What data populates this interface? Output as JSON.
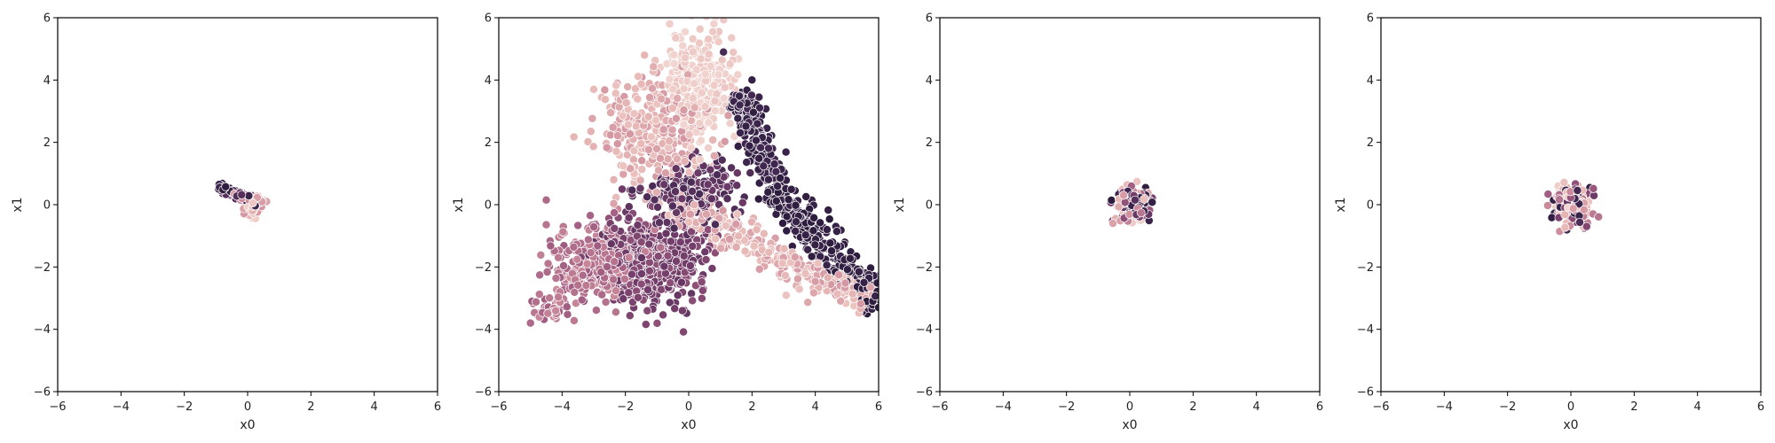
{
  "figure": {
    "background": "#ffffff"
  },
  "palette": [
    "#f2d6d1",
    "#e7b8b6",
    "#cf8f9e",
    "#9d5a7f",
    "#6d3a67",
    "#3f2750",
    "#2b1b3b"
  ],
  "chart_data": [
    {
      "type": "scatter",
      "title": "",
      "xlabel": "x0",
      "ylabel": "x1",
      "xlim": [
        -6,
        6
      ],
      "ylim": [
        -6,
        6
      ],
      "xticks": [
        -6,
        -4,
        -2,
        0,
        2,
        4,
        6
      ],
      "yticks": [
        -6,
        -4,
        -2,
        0,
        2,
        4,
        6
      ],
      "grid": false,
      "hue_scale": "continuous",
      "clusters": [
        {
          "shape": "segment",
          "from": [
            -0.9,
            0.6
          ],
          "to": [
            0.3,
            0.05
          ],
          "width": 0.13,
          "count": 60,
          "hue": [
            0.6,
            1.0
          ]
        },
        {
          "shape": "segment",
          "from": [
            -0.5,
            0.35
          ],
          "to": [
            0.5,
            0.1
          ],
          "width": 0.12,
          "count": 40,
          "hue": [
            0.2,
            0.8
          ]
        },
        {
          "shape": "ellipse",
          "cx": 0.15,
          "cy": -0.2,
          "rx": 0.18,
          "ry": 0.18,
          "count": 25,
          "hue": [
            0.0,
            0.3
          ]
        },
        {
          "shape": "ellipse",
          "cx": 0.4,
          "cy": 0.1,
          "rx": 0.15,
          "ry": 0.12,
          "count": 20,
          "hue": [
            0.1,
            0.4
          ]
        }
      ],
      "highlights": [
        {
          "x": -0.9,
          "y": 0.65,
          "hue": 0.85
        },
        {
          "x": 0.3,
          "y": 0.18,
          "hue": 0.95
        },
        {
          "x": -0.1,
          "y": -0.1,
          "hue": 0.95
        },
        {
          "x": 0.25,
          "y": -0.45,
          "hue": 0.05
        },
        {
          "x": 0.6,
          "y": 0.1,
          "hue": 0.25
        }
      ]
    },
    {
      "type": "scatter",
      "title": "",
      "xlabel": "x0",
      "ylabel": "x1",
      "xlim": [
        -6,
        6
      ],
      "ylim": [
        -6,
        6
      ],
      "xticks": [
        -6,
        -4,
        -2,
        0,
        2,
        4,
        6
      ],
      "yticks": [
        -6,
        -4,
        -2,
        0,
        2,
        4,
        6
      ],
      "grid": false,
      "hue_scale": "continuous",
      "clusters": [
        {
          "shape": "ellipse",
          "cx": 0.3,
          "cy": 4.0,
          "rx": 0.8,
          "ry": 1.5,
          "count": 260,
          "hue": [
            0.0,
            0.1
          ]
        },
        {
          "shape": "ellipse",
          "cx": -1.2,
          "cy": 2.4,
          "rx": 1.4,
          "ry": 1.6,
          "count": 330,
          "hue": [
            0.1,
            0.3
          ]
        },
        {
          "shape": "segment",
          "from": [
            -0.5,
            0.0
          ],
          "to": [
            5.8,
            -3.1
          ],
          "width": 0.5,
          "count": 300,
          "hue": [
            0.1,
            0.3
          ]
        },
        {
          "shape": "ellipse",
          "cx": -2.8,
          "cy": -1.8,
          "rx": 1.3,
          "ry": 1.0,
          "count": 330,
          "hue": [
            0.35,
            0.5
          ]
        },
        {
          "shape": "segment",
          "from": [
            -4.7,
            -3.7
          ],
          "to": [
            -2.6,
            -1.5
          ],
          "width": 0.45,
          "count": 110,
          "hue": [
            0.35,
            0.5
          ]
        },
        {
          "shape": "ellipse",
          "cx": -1.1,
          "cy": -1.8,
          "rx": 1.4,
          "ry": 1.1,
          "count": 460,
          "hue": [
            0.55,
            0.7
          ]
        },
        {
          "shape": "ellipse",
          "cx": 0.0,
          "cy": 0.4,
          "rx": 1.3,
          "ry": 1.0,
          "count": 220,
          "hue": [
            0.65,
            0.8
          ]
        },
        {
          "shape": "segment",
          "from": [
            1.6,
            3.6
          ],
          "to": [
            2.6,
            0.8
          ],
          "width": 0.45,
          "count": 160,
          "hue": [
            0.8,
            0.95
          ]
        },
        {
          "shape": "segment",
          "from": [
            2.6,
            0.6
          ],
          "to": [
            6.0,
            -3.2
          ],
          "width": 0.45,
          "count": 330,
          "hue": [
            0.88,
            1.0
          ]
        }
      ],
      "highlights": [
        {
          "x": -4.5,
          "y": 0.15,
          "hue": 0.45
        },
        {
          "x": -5.0,
          "y": -3.8,
          "hue": 0.45
        },
        {
          "x": -3.0,
          "y": 3.7,
          "hue": 0.15
        },
        {
          "x": -0.6,
          "y": 5.8,
          "hue": 0.05
        },
        {
          "x": 0.8,
          "y": 5.8,
          "hue": 0.02
        },
        {
          "x": 1.1,
          "y": 4.9,
          "hue": 0.8
        },
        {
          "x": 2.0,
          "y": 4.0,
          "hue": 0.92
        },
        {
          "x": -0.2,
          "y": -3.4,
          "hue": 0.65
        },
        {
          "x": 3.4,
          "y": -2.6,
          "hue": 0.2
        },
        {
          "x": 4.5,
          "y": -2.3,
          "hue": 0.15
        },
        {
          "x": 6.0,
          "y": -3.3,
          "hue": 0.98
        }
      ]
    },
    {
      "type": "scatter",
      "title": "",
      "xlabel": "x0",
      "ylabel": "x1",
      "xlim": [
        -6,
        6
      ],
      "ylim": [
        -6,
        6
      ],
      "xticks": [
        -6,
        -4,
        -2,
        0,
        2,
        4,
        6
      ],
      "yticks": [
        -6,
        -4,
        -2,
        0,
        2,
        4,
        6
      ],
      "grid": false,
      "hue_scale": "continuous",
      "clusters": [
        {
          "shape": "ellipse",
          "cx": 0.1,
          "cy": 0.0,
          "rx": 0.42,
          "ry": 0.48,
          "count": 160,
          "hue": [
            0.0,
            1.0
          ]
        },
        {
          "shape": "ellipse",
          "cx": 0.25,
          "cy": 0.15,
          "rx": 0.2,
          "ry": 0.25,
          "count": 40,
          "hue": [
            0.7,
            1.0
          ]
        }
      ],
      "highlights": [
        {
          "x": 0.5,
          "y": 0.55,
          "hue": 0.95
        },
        {
          "x": -0.3,
          "y": 0.4,
          "hue": 0.9
        },
        {
          "x": 0.35,
          "y": -0.5,
          "hue": 0.05
        },
        {
          "x": -0.45,
          "y": -0.45,
          "hue": 0.2
        }
      ]
    },
    {
      "type": "scatter",
      "title": "",
      "xlabel": "x0",
      "ylabel": "x1",
      "xlim": [
        -6,
        6
      ],
      "ylim": [
        -6,
        6
      ],
      "xticks": [
        -6,
        -4,
        -2,
        0,
        2,
        4,
        6
      ],
      "yticks": [
        -6,
        -4,
        -2,
        0,
        2,
        4,
        6
      ],
      "grid": false,
      "hue_scale": "continuous",
      "clusters": [
        {
          "shape": "ellipse",
          "cx": 0.05,
          "cy": 0.0,
          "rx": 0.48,
          "ry": 0.55,
          "count": 150,
          "hue": [
            0.0,
            1.0
          ]
        },
        {
          "shape": "ellipse",
          "cx": -0.1,
          "cy": 0.3,
          "rx": 0.25,
          "ry": 0.25,
          "count": 40,
          "hue": [
            0.0,
            0.3
          ]
        }
      ],
      "highlights": [
        {
          "x": 0.6,
          "y": 0.55,
          "hue": 0.95
        },
        {
          "x": -0.4,
          "y": 0.6,
          "hue": 0.05
        },
        {
          "x": 0.5,
          "y": -0.7,
          "hue": 0.6
        },
        {
          "x": 0.7,
          "y": -0.3,
          "hue": 0.4
        }
      ]
    }
  ]
}
